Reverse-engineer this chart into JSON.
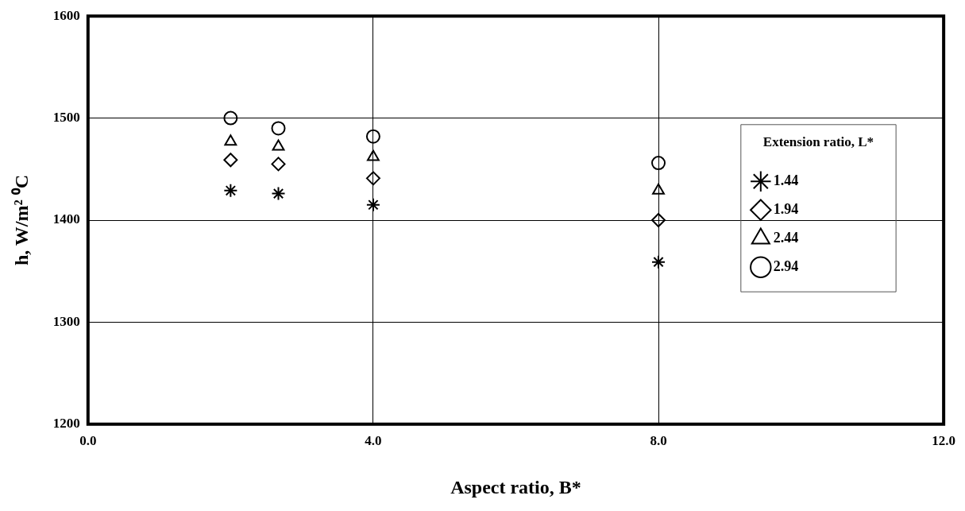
{
  "chart_data": {
    "type": "scatter",
    "xlabel": "Aspect ratio, B*",
    "ylabel": "h, W/m² ⁰C",
    "legend_title": "Extension ratio, L*",
    "x": [
      2.0,
      2.67,
      4.0,
      8.0
    ],
    "series": [
      {
        "name": "1.44",
        "color": "#000000",
        "marker": "cross",
        "values": [
          1429,
          1426,
          1415,
          1359
        ]
      },
      {
        "name": "1.94",
        "color": "#000000",
        "marker": "diamond",
        "values": [
          1459,
          1455,
          1441,
          1400
        ]
      },
      {
        "name": "2.44",
        "color": "#000000",
        "marker": "triangle",
        "values": [
          1477,
          1472,
          1462,
          1429
        ]
      },
      {
        "name": "2.94",
        "color": "#000000",
        "marker": "circle",
        "values": [
          1500,
          1490,
          1482,
          1456
        ]
      }
    ],
    "xlim": [
      0,
      12
    ],
    "xticks": [
      {
        "value": 0,
        "label": "0.0"
      },
      {
        "value": 4,
        "label": "4.0"
      },
      {
        "value": 8,
        "label": "8.0"
      },
      {
        "value": 12,
        "label": "12.0"
      }
    ],
    "ylim": [
      1200,
      1600
    ],
    "yticks": [
      1200,
      1300,
      1400,
      1500,
      1600
    ],
    "grid": true,
    "legend": "right"
  }
}
